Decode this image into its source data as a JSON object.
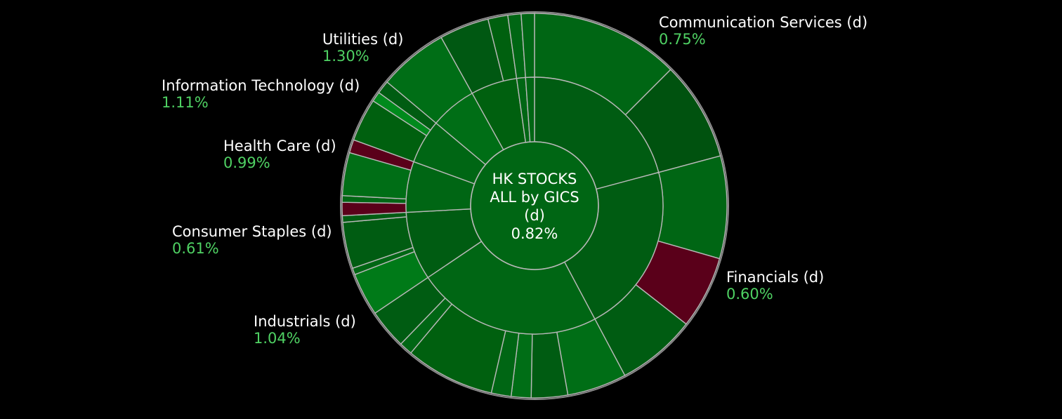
{
  "chart_data": {
    "type": "sunburst",
    "center": {
      "title_lines": [
        "HK STOCKS",
        "ALL by GICS",
        "(d)"
      ],
      "value": "0.82%"
    },
    "sectors": [
      {
        "name": "Communication Services (d)",
        "change": "0.75%",
        "start": 0,
        "end": 75,
        "color": "#005c12",
        "children": [
          {
            "start": 0,
            "end": 45,
            "color": "#006614"
          },
          {
            "start": 45,
            "end": 75,
            "color": "#00520f"
          }
        ]
      },
      {
        "name": "Financials (d)",
        "change": "0.60%",
        "start": 75,
        "end": 152,
        "color": "#005c12",
        "children": [
          {
            "start": 75,
            "end": 106,
            "color": "#006614"
          },
          {
            "start": 106,
            "end": 128,
            "color": "#5a001a"
          },
          {
            "start": 128,
            "end": 152,
            "color": "#005c12"
          }
        ]
      },
      {
        "name": "Industrials (d)",
        "change": "1.04%",
        "start": 152,
        "end": 236,
        "color": "#006614",
        "children": [
          {
            "start": 152,
            "end": 170,
            "color": "#006e16"
          },
          {
            "start": 170,
            "end": 181,
            "color": "#005c12"
          },
          {
            "start": 181,
            "end": 187,
            "color": "#006e16"
          },
          {
            "start": 187,
            "end": 193,
            "color": "#006614"
          },
          {
            "start": 193,
            "end": 220,
            "color": "#00600f"
          },
          {
            "start": 220,
            "end": 224,
            "color": "#006614"
          },
          {
            "start": 224,
            "end": 236,
            "color": "#005c12"
          }
        ]
      },
      {
        "name": "Consumer Staples (d)",
        "change": "0.61%",
        "start": 236,
        "end": 267,
        "color": "#005c12",
        "children": [
          {
            "start": 236,
            "end": 249,
            "color": "#007a18"
          },
          {
            "start": 249,
            "end": 251,
            "color": "#006614"
          },
          {
            "start": 251,
            "end": 265,
            "color": "#005c12"
          },
          {
            "start": 265,
            "end": 267,
            "color": "#005c12"
          }
        ]
      },
      {
        "name": "Health Care (d)",
        "change": "0.99%",
        "start": 267,
        "end": 290,
        "color": "#006614",
        "children": [
          {
            "start": 267,
            "end": 271,
            "color": "#5a001a"
          },
          {
            "start": 271,
            "end": 273,
            "color": "#006614"
          },
          {
            "start": 273,
            "end": 286,
            "color": "#006e16"
          },
          {
            "start": 286,
            "end": 290,
            "color": "#5a001a"
          }
        ]
      },
      {
        "name": "Information Technology (d)",
        "change": "1.11%",
        "start": 290,
        "end": 310,
        "color": "#006614",
        "children": [
          {
            "start": 290,
            "end": 303,
            "color": "#00600f"
          },
          {
            "start": 303,
            "end": 306,
            "color": "#008a1c"
          },
          {
            "start": 306,
            "end": 310,
            "color": "#005c12"
          }
        ]
      },
      {
        "name": "Utilities (d)",
        "change": "1.30%",
        "start": 310,
        "end": 331,
        "color": "#006e16",
        "children": [
          {
            "start": 310,
            "end": 331,
            "color": "#006e16"
          }
        ]
      },
      {
        "name": "",
        "change": "",
        "start": 331,
        "end": 352,
        "color": "#00600f",
        "children": [
          {
            "start": 331,
            "end": 346,
            "color": "#005812"
          },
          {
            "start": 346,
            "end": 352,
            "color": "#00600f"
          }
        ]
      },
      {
        "name": "",
        "change": "",
        "start": 352,
        "end": 356,
        "color": "#006614",
        "children": [
          {
            "start": 352,
            "end": 356,
            "color": "#006614"
          }
        ]
      },
      {
        "name": "",
        "change": "",
        "start": 356,
        "end": 360,
        "color": "#006614",
        "children": [
          {
            "start": 356,
            "end": 360,
            "color": "#006614"
          }
        ]
      }
    ],
    "labels": [
      {
        "sector": "Communication Services (d)",
        "name": "Communication Services (d)",
        "change": "0.75%"
      },
      {
        "sector": "Financials (d)",
        "name": "Financials (d)",
        "change": "0.60%"
      },
      {
        "sector": "Industrials (d)",
        "name": "Industrials (d)",
        "change": "1.04%"
      },
      {
        "sector": "Consumer Staples (d)",
        "name": "Consumer Staples (d)",
        "change": "0.61%"
      },
      {
        "sector": "Health Care (d)",
        "name": "Health Care (d)",
        "change": "0.99%"
      },
      {
        "sector": "Information Technology (d)",
        "name": "Information Technology (d)",
        "change": "1.11%"
      },
      {
        "sector": "Utilities (d)",
        "name": "Utilities (d)",
        "change": "1.30%"
      }
    ],
    "colors": {
      "background": "#000000",
      "separator": "#b8b8b8",
      "outer_ring": "#8a8a8a",
      "center_fill": "#006614",
      "positive_text": "#4fd163",
      "label_text": "#ffffff"
    }
  }
}
